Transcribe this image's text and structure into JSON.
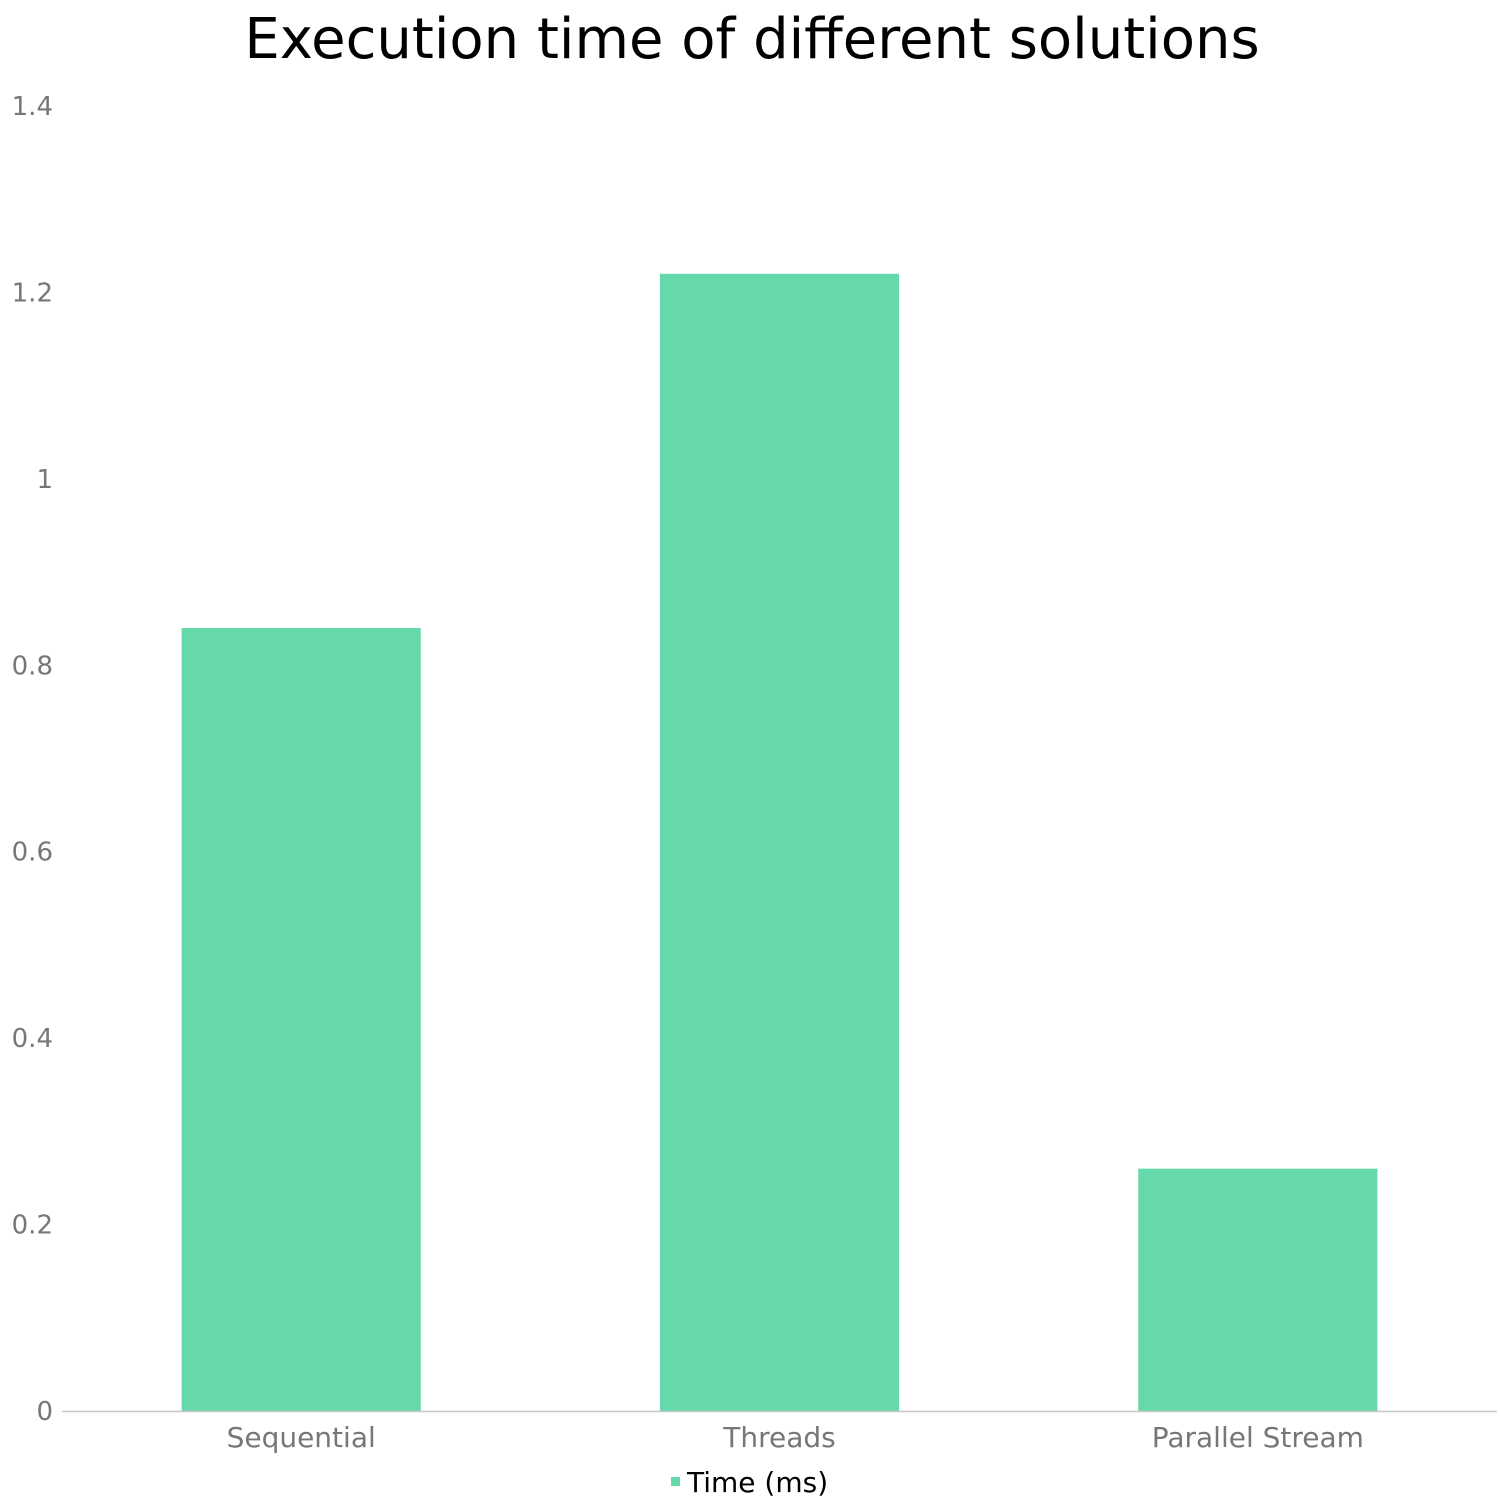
{
  "chart_data": {
    "type": "bar",
    "title": "Execution time of different solutions",
    "categories": [
      "Sequential",
      "Threads",
      "Parallel Stream"
    ],
    "series": [
      {
        "name": "Time (ms)",
        "values": [
          0.84,
          1.22,
          0.26
        ],
        "color": "#66d9aa"
      }
    ],
    "xlabel": "",
    "ylabel": "",
    "ylim": [
      0,
      1.4
    ],
    "yticks": [
      "0",
      "0.2",
      "0.4",
      "0.6",
      "0.8",
      "1",
      "1.2",
      "1.4"
    ],
    "grid": false,
    "legend": "bottom-center",
    "colors": {
      "axis": "#c8c8c8",
      "tick_text": "#777777",
      "title_text": "#000000"
    }
  }
}
